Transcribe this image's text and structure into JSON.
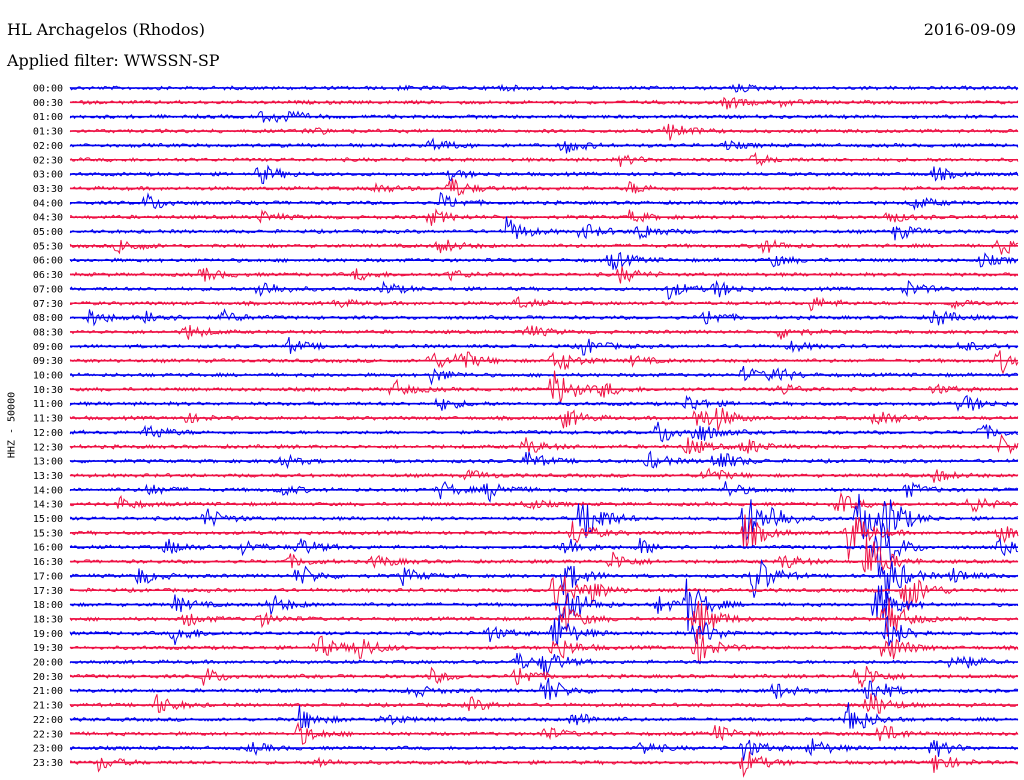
{
  "header": {
    "station": "HL Archagelos (Rhodos)",
    "date": "2016-09-09",
    "filter_label": "Applied filter: WWSSN-SP",
    "channel_label": "HHZ - 50000"
  },
  "colors": {
    "even_row": "#0000ee",
    "odd_row": "#ee1144"
  },
  "chart_data": {
    "type": "line",
    "title": "HL Archagelos (Rhodos)",
    "subtitle": "Applied filter: WWSSN-SP",
    "ylabel": "HHZ - 50000",
    "xlabel": "",
    "series": [
      {
        "time": "00:00",
        "events": [
          [
            0.35,
            0.15
          ],
          [
            0.45,
            0.3
          ],
          [
            0.7,
            0.5
          ]
        ]
      },
      {
        "time": "00:30",
        "events": [
          [
            0.69,
            0.8
          ],
          [
            0.75,
            0.4
          ]
        ]
      },
      {
        "time": "01:00",
        "events": [
          [
            0.2,
            0.6
          ],
          [
            0.22,
            0.9
          ]
        ]
      },
      {
        "time": "01:30",
        "events": [
          [
            0.25,
            0.5
          ],
          [
            0.63,
            1.2
          ]
        ]
      },
      {
        "time": "02:00",
        "events": [
          [
            0.38,
            0.9
          ],
          [
            0.52,
            1.0
          ],
          [
            0.69,
            0.5
          ]
        ]
      },
      {
        "time": "02:30",
        "events": [
          [
            0.58,
            0.6
          ],
          [
            0.72,
            0.7
          ]
        ]
      },
      {
        "time": "03:00",
        "events": [
          [
            0.2,
            1.2
          ],
          [
            0.4,
            0.6
          ],
          [
            0.91,
            0.9
          ]
        ]
      },
      {
        "time": "03:30",
        "events": [
          [
            0.32,
            0.6
          ],
          [
            0.4,
            1.4
          ],
          [
            0.59,
            0.7
          ]
        ]
      },
      {
        "time": "04:00",
        "events": [
          [
            0.08,
            1.1
          ],
          [
            0.39,
            1.0
          ],
          [
            0.89,
            0.8
          ]
        ]
      },
      {
        "time": "04:30",
        "events": [
          [
            0.2,
            0.7
          ],
          [
            0.38,
            0.9
          ],
          [
            0.59,
            0.7
          ],
          [
            0.86,
            0.8
          ]
        ]
      },
      {
        "time": "05:00",
        "events": [
          [
            0.46,
            1.6
          ],
          [
            0.54,
            1.0
          ],
          [
            0.6,
            1.1
          ],
          [
            0.87,
            1.0
          ]
        ]
      },
      {
        "time": "05:30",
        "events": [
          [
            0.05,
            1.0
          ],
          [
            0.39,
            0.9
          ],
          [
            0.73,
            0.9
          ],
          [
            0.98,
            1.1
          ]
        ]
      },
      {
        "time": "06:00",
        "events": [
          [
            0.57,
            1.3
          ],
          [
            0.74,
            0.7
          ],
          [
            0.96,
            0.8
          ]
        ]
      },
      {
        "time": "06:30",
        "events": [
          [
            0.14,
            0.8
          ],
          [
            0.3,
            0.7
          ],
          [
            0.4,
            0.6
          ],
          [
            0.58,
            1.0
          ]
        ]
      },
      {
        "time": "07:00",
        "events": [
          [
            0.2,
            1.2
          ],
          [
            0.33,
            0.8
          ],
          [
            0.63,
            1.1
          ],
          [
            0.68,
            1.0
          ],
          [
            0.88,
            1.0
          ]
        ]
      },
      {
        "time": "07:30",
        "events": [
          [
            0.28,
            0.5
          ],
          [
            0.47,
            0.7
          ],
          [
            0.78,
            0.9
          ],
          [
            0.93,
            0.6
          ]
        ]
      },
      {
        "time": "08:00",
        "events": [
          [
            0.02,
            1.1
          ],
          [
            0.08,
            1.0
          ],
          [
            0.16,
            0.8
          ],
          [
            0.67,
            1.0
          ],
          [
            0.91,
            1.2
          ]
        ]
      },
      {
        "time": "08:30",
        "events": [
          [
            0.12,
            1.0
          ],
          [
            0.48,
            0.9
          ],
          [
            0.75,
            0.8
          ]
        ]
      },
      {
        "time": "09:00",
        "events": [
          [
            0.23,
            0.9
          ],
          [
            0.54,
            1.1
          ],
          [
            0.76,
            0.6
          ],
          [
            0.94,
            0.7
          ]
        ]
      },
      {
        "time": "09:30",
        "events": [
          [
            0.38,
            1.1
          ],
          [
            0.41,
            1.3
          ],
          [
            0.51,
            1.7
          ],
          [
            0.59,
            0.6
          ],
          [
            0.98,
            1.5
          ]
        ]
      },
      {
        "time": "10:00",
        "events": [
          [
            0.38,
            1.0
          ],
          [
            0.71,
            0.9
          ],
          [
            0.74,
            1.0
          ]
        ]
      },
      {
        "time": "10:30",
        "events": [
          [
            0.34,
            1.1
          ],
          [
            0.51,
            2.5
          ],
          [
            0.56,
            0.9
          ],
          [
            0.75,
            0.7
          ],
          [
            0.91,
            0.6
          ]
        ]
      },
      {
        "time": "11:00",
        "events": [
          [
            0.39,
            0.8
          ],
          [
            0.65,
            1.1
          ],
          [
            0.94,
            1.3
          ]
        ]
      },
      {
        "time": "11:30",
        "events": [
          [
            0.12,
            0.6
          ],
          [
            0.52,
            1.3
          ],
          [
            0.66,
            1.6
          ],
          [
            0.68,
            1.1
          ],
          [
            0.85,
            1.2
          ]
        ]
      },
      {
        "time": "12:00",
        "events": [
          [
            0.08,
            1.1
          ],
          [
            0.62,
            1.5
          ],
          [
            0.66,
            1.3
          ],
          [
            0.96,
            1.0
          ]
        ]
      },
      {
        "time": "12:30",
        "events": [
          [
            0.48,
            1.0
          ],
          [
            0.65,
            1.2
          ],
          [
            0.71,
            1.1
          ],
          [
            0.98,
            1.3
          ]
        ]
      },
      {
        "time": "13:00",
        "events": [
          [
            0.22,
            0.9
          ],
          [
            0.48,
            1.2
          ],
          [
            0.61,
            1.0
          ],
          [
            0.68,
            1.6
          ]
        ]
      },
      {
        "time": "13:30",
        "events": [
          [
            0.42,
            0.6
          ],
          [
            0.67,
            1.1
          ],
          [
            0.91,
            0.8
          ]
        ]
      },
      {
        "time": "14:00",
        "events": [
          [
            0.08,
            0.7
          ],
          [
            0.22,
            0.7
          ],
          [
            0.39,
            1.0
          ],
          [
            0.44,
            1.3
          ],
          [
            0.69,
            1.0
          ],
          [
            0.88,
            1.0
          ]
        ]
      },
      {
        "time": "14:30",
        "events": [
          [
            0.05,
            0.9
          ],
          [
            0.48,
            0.7
          ],
          [
            0.81,
            1.3
          ],
          [
            0.95,
            1.1
          ]
        ]
      },
      {
        "time": "15:00",
        "events": [
          [
            0.14,
            1.4
          ],
          [
            0.54,
            3.8
          ],
          [
            0.71,
            3.5
          ],
          [
            0.74,
            1.2
          ],
          [
            0.83,
            3.5
          ],
          [
            0.86,
            3.0
          ]
        ]
      },
      {
        "time": "15:30",
        "events": [
          [
            0.53,
            1.6
          ],
          [
            0.71,
            2.5
          ],
          [
            0.82,
            3.3
          ],
          [
            0.98,
            1.2
          ]
        ]
      },
      {
        "time": "16:00",
        "events": [
          [
            0.1,
            1.0
          ],
          [
            0.18,
            0.9
          ],
          [
            0.24,
            1.2
          ],
          [
            0.52,
            1.4
          ],
          [
            0.6,
            1.0
          ],
          [
            0.85,
            4.0
          ],
          [
            0.98,
            1.0
          ]
        ]
      },
      {
        "time": "16:30",
        "events": [
          [
            0.23,
            0.8
          ],
          [
            0.32,
            0.9
          ],
          [
            0.57,
            1.2
          ],
          [
            0.75,
            1.0
          ],
          [
            0.84,
            3.5
          ]
        ]
      },
      {
        "time": "17:00",
        "events": [
          [
            0.07,
            1.2
          ],
          [
            0.24,
            1.4
          ],
          [
            0.35,
            1.0
          ],
          [
            0.52,
            2.2
          ],
          [
            0.72,
            3.0
          ],
          [
            0.86,
            3.2
          ],
          [
            0.93,
            1.0
          ]
        ]
      },
      {
        "time": "17:30",
        "events": [
          [
            0.51,
            3.5
          ],
          [
            0.55,
            1.0
          ],
          [
            0.88,
            3.0
          ]
        ]
      },
      {
        "time": "18:00",
        "events": [
          [
            0.11,
            1.0
          ],
          [
            0.21,
            1.3
          ],
          [
            0.52,
            3.2
          ],
          [
            0.62,
            1.0
          ],
          [
            0.65,
            3.0
          ],
          [
            0.85,
            3.0
          ]
        ]
      },
      {
        "time": "18:30",
        "events": [
          [
            0.12,
            0.9
          ],
          [
            0.2,
            0.8
          ],
          [
            0.52,
            1.8
          ],
          [
            0.66,
            3.0
          ],
          [
            0.86,
            2.8
          ]
        ]
      },
      {
        "time": "19:00",
        "events": [
          [
            0.11,
            1.2
          ],
          [
            0.44,
            1.0
          ],
          [
            0.51,
            2.8
          ],
          [
            0.66,
            2.0
          ],
          [
            0.86,
            2.2
          ]
        ]
      },
      {
        "time": "19:30",
        "events": [
          [
            0.26,
            1.5
          ],
          [
            0.3,
            1.8
          ],
          [
            0.51,
            1.8
          ],
          [
            0.66,
            2.1
          ],
          [
            0.86,
            2.0
          ]
        ]
      },
      {
        "time": "20:00",
        "events": [
          [
            0.47,
            1.1
          ],
          [
            0.5,
            1.5
          ],
          [
            0.93,
            1.5
          ]
        ]
      },
      {
        "time": "20:30",
        "events": [
          [
            0.14,
            1.1
          ],
          [
            0.38,
            0.9
          ],
          [
            0.47,
            1.4
          ],
          [
            0.83,
            2.0
          ]
        ]
      },
      {
        "time": "21:00",
        "events": [
          [
            0.36,
            0.8
          ],
          [
            0.5,
            1.8
          ],
          [
            0.74,
            1.1
          ],
          [
            0.84,
            2.2
          ]
        ]
      },
      {
        "time": "21:30",
        "events": [
          [
            0.09,
            1.2
          ],
          [
            0.42,
            0.9
          ],
          [
            0.84,
            1.9
          ]
        ]
      },
      {
        "time": "22:00",
        "events": [
          [
            0.24,
            1.6
          ],
          [
            0.33,
            0.8
          ],
          [
            0.53,
            1.0
          ],
          [
            0.82,
            2.5
          ]
        ]
      },
      {
        "time": "22:30",
        "events": [
          [
            0.24,
            1.4
          ],
          [
            0.5,
            0.8
          ],
          [
            0.68,
            1.0
          ],
          [
            0.85,
            1.6
          ]
        ]
      },
      {
        "time": "23:00",
        "events": [
          [
            0.19,
            0.7
          ],
          [
            0.6,
            0.9
          ],
          [
            0.71,
            1.3
          ],
          [
            0.78,
            1.2
          ],
          [
            0.91,
            1.1
          ]
        ]
      },
      {
        "time": "23:30",
        "events": [
          [
            0.03,
            0.9
          ],
          [
            0.26,
            0.6
          ],
          [
            0.71,
            1.6
          ],
          [
            0.91,
            1.3
          ]
        ]
      }
    ]
  }
}
